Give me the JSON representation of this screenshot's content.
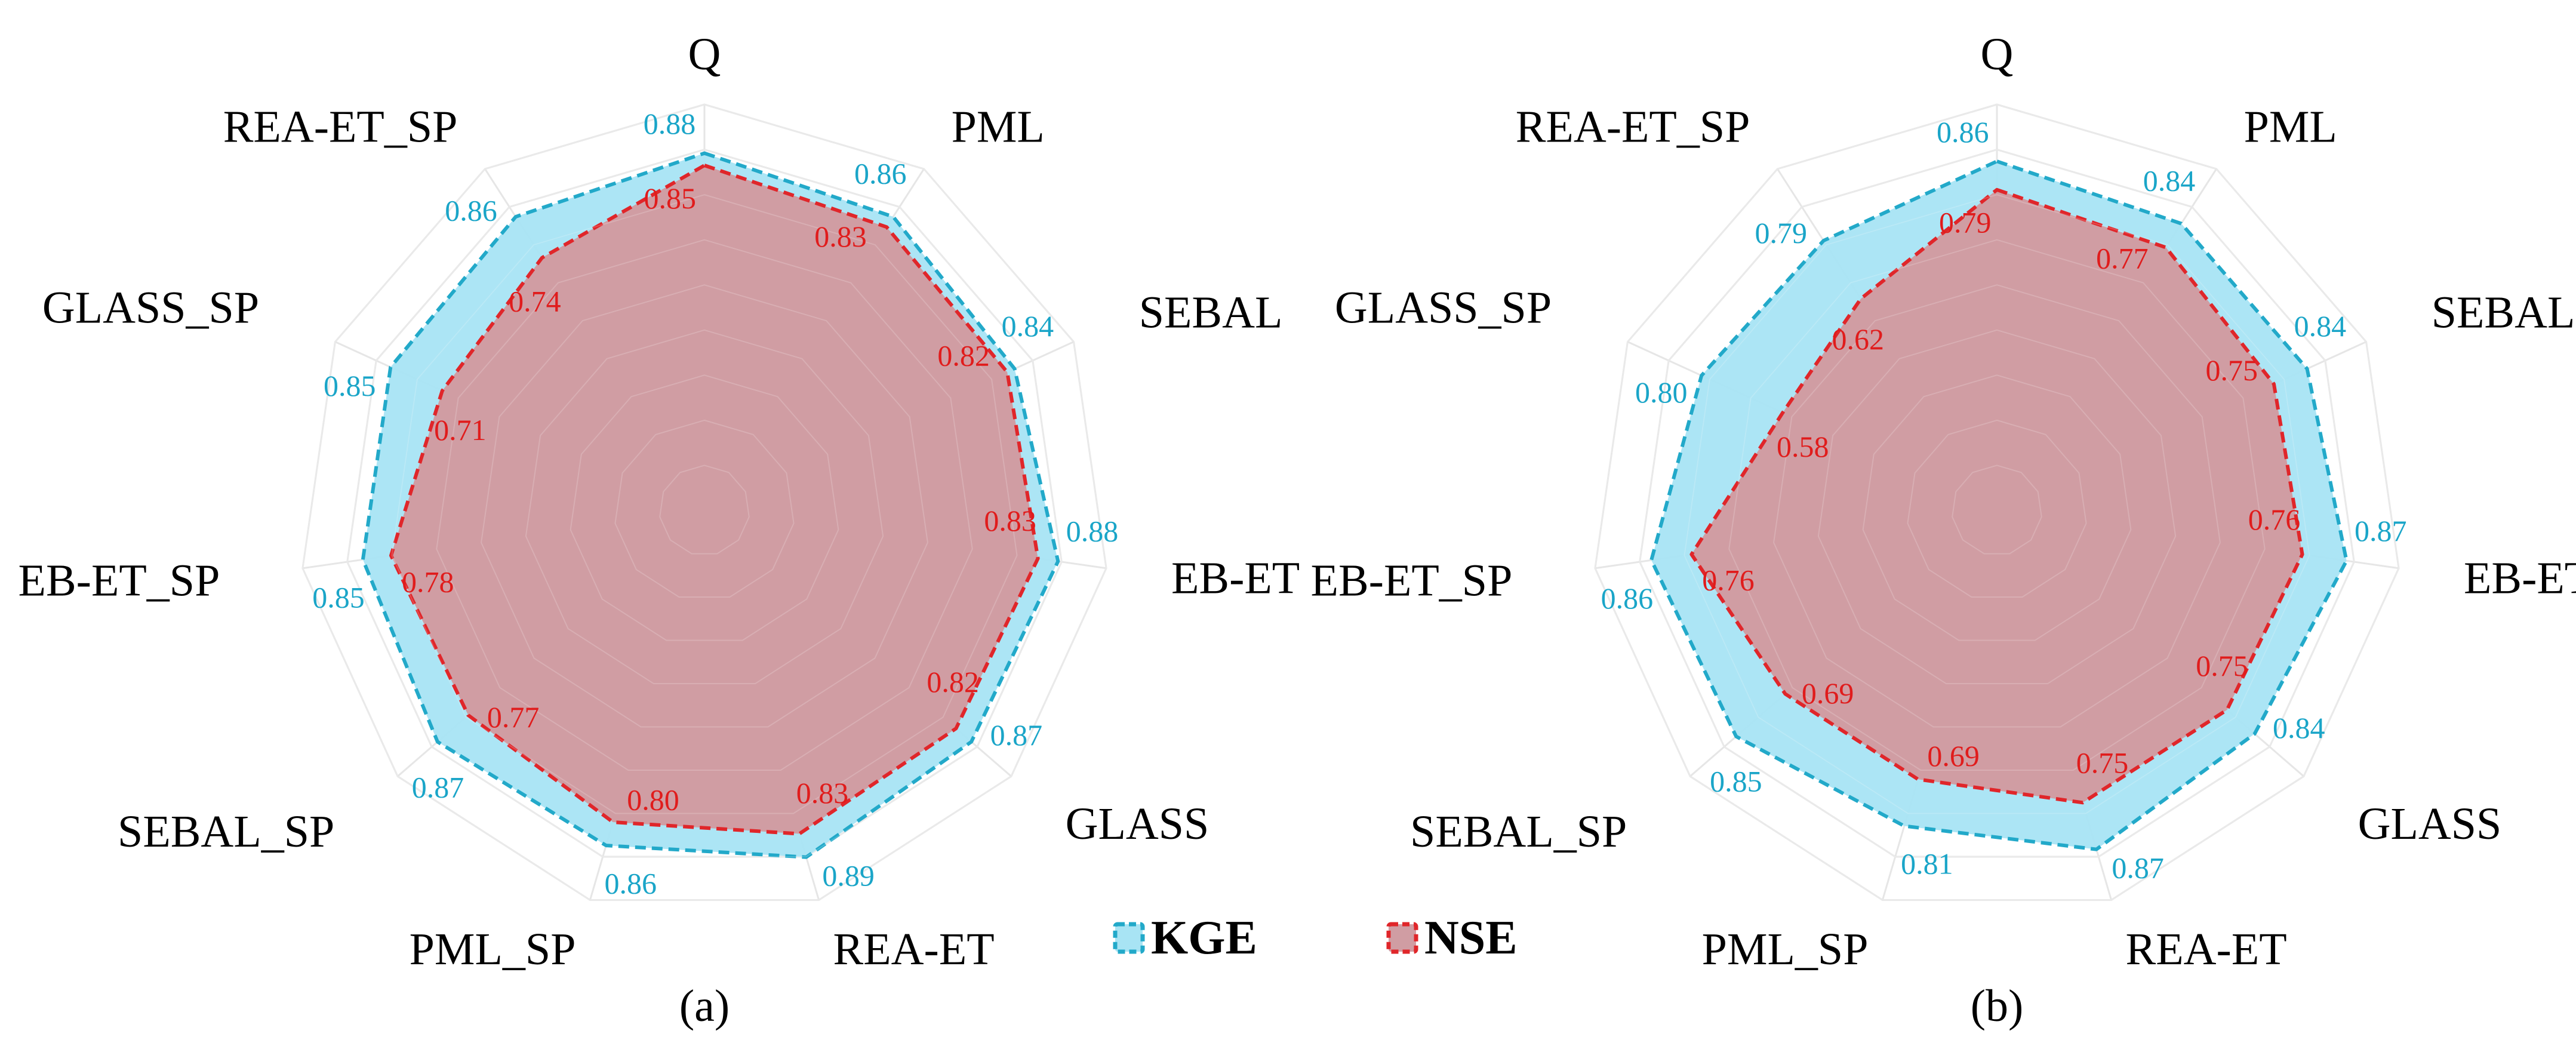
{
  "figure": {
    "legend": {
      "kge_label": "KGE",
      "nse_label": "NSE"
    }
  },
  "colors": {
    "kge_fill": "#a8e4f4",
    "kge_line": "#22a9c9",
    "kge_text": "#1aa5c8",
    "nse_fill": "#d09da3",
    "nse_line": "#e0262a",
    "nse_text": "#e01c1c"
  },
  "chart_data": [
    {
      "type": "radar",
      "panel_label": "(a)",
      "axes": [
        "Q",
        "PML",
        "SEBAL",
        "EB-ET",
        "GLASS",
        "REA-ET",
        "PML_SP",
        "SEBAL_SP",
        "EB-ET_SP",
        "GLASS_SP",
        "REA-ET_SP"
      ],
      "series": [
        {
          "name": "KGE",
          "values": [
            0.88,
            0.86,
            0.84,
            0.88,
            0.87,
            0.89,
            0.86,
            0.87,
            0.85,
            0.85,
            0.86
          ]
        },
        {
          "name": "NSE",
          "values": [
            0.85,
            0.83,
            0.82,
            0.83,
            0.82,
            0.83,
            0.8,
            0.77,
            0.78,
            0.71,
            0.74
          ]
        }
      ],
      "r_range": [
        0,
        1
      ]
    },
    {
      "type": "radar",
      "panel_label": "(b)",
      "axes": [
        "Q",
        "PML",
        "SEBAL",
        "EB-ET",
        "GLASS",
        "REA-ET",
        "PML_SP",
        "SEBAL_SP",
        "EB-ET_SP",
        "GLASS_SP",
        "REA-ET_SP"
      ],
      "series": [
        {
          "name": "KGE",
          "values": [
            0.86,
            0.84,
            0.84,
            0.87,
            0.84,
            0.87,
            0.81,
            0.85,
            0.86,
            0.8,
            0.79
          ]
        },
        {
          "name": "NSE",
          "values": [
            0.79,
            0.77,
            0.75,
            0.76,
            0.75,
            0.75,
            0.69,
            0.69,
            0.76,
            0.58,
            0.62
          ]
        }
      ],
      "r_range": [
        0,
        1
      ]
    }
  ]
}
